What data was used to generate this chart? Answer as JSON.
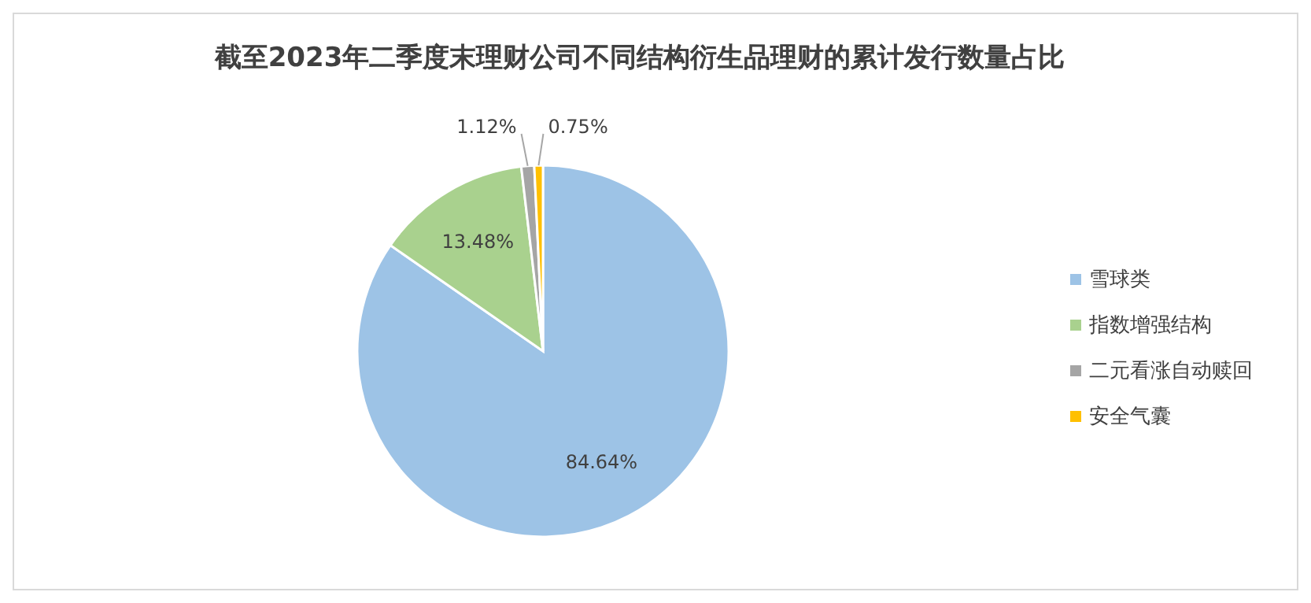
{
  "chart_data": {
    "type": "pie",
    "title": "截至2023年二季度末理财公司不同结构衍生品理财的累计发行数量占比",
    "categories": [
      "雪球类",
      "指数增强结构",
      "二元看涨自动赎回",
      "安全气囊"
    ],
    "values": [
      84.64,
      13.48,
      1.12,
      0.75
    ],
    "value_labels": [
      "84.64%",
      "13.48%",
      "1.12%",
      "0.75%"
    ],
    "colors": [
      "#9dc3e6",
      "#a9d18e",
      "#a5a5a5",
      "#ffc000"
    ],
    "legend": "right"
  }
}
